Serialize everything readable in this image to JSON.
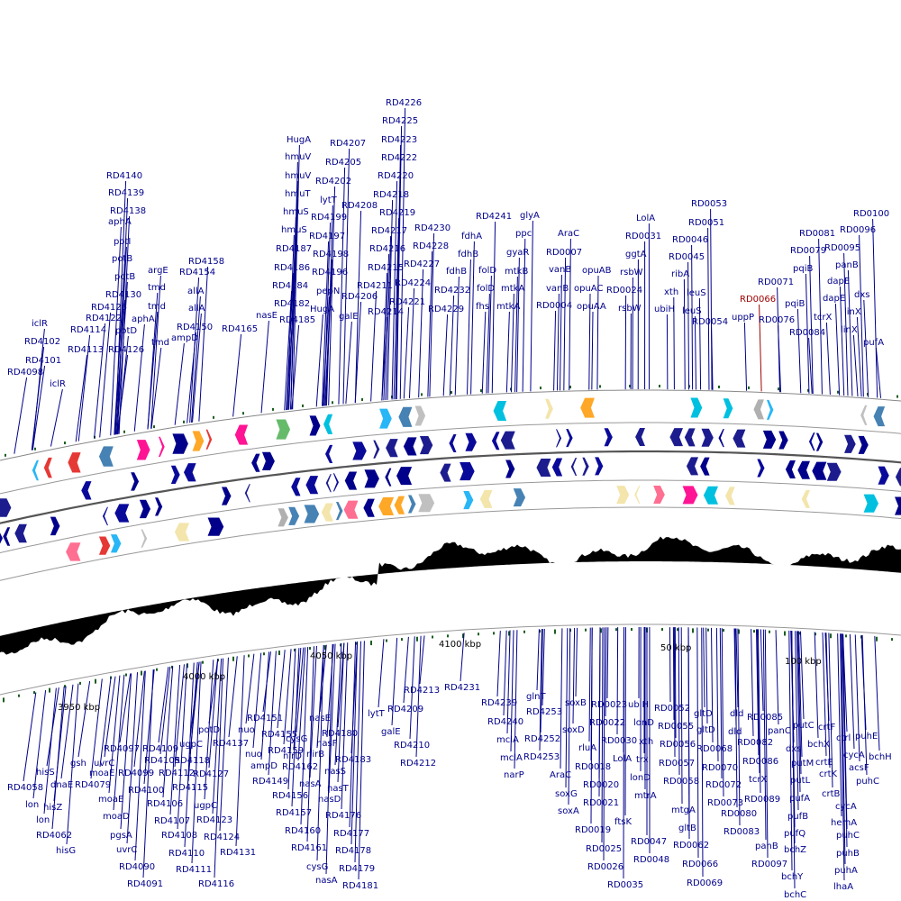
{
  "top_labels": [
    "RD4098",
    "RD4101",
    "iclR",
    "RD4102",
    "iclR",
    "RD4113",
    "RD4114",
    "RD4122",
    "RD4125",
    "RD4130",
    "potD",
    "RD4126",
    "aphA",
    "tmd",
    "tmd",
    "argE",
    "tmd",
    "potI",
    "potB",
    "potB",
    "aphA",
    "RD4138",
    "RD4139",
    "RD4140",
    "RD4154",
    "RD4158",
    "allA",
    "allA",
    "RD4150",
    "ampD",
    "RD4165",
    "nasE",
    "HugA",
    "hmuV",
    "hmuV",
    "hmuT",
    "hmuS",
    "hmuS",
    "RD4187",
    "RD4186",
    "RD4184",
    "RD4182",
    "RD4185",
    "RD4207",
    "RD4205",
    "RD4202",
    "lytT",
    "RD4199",
    "RD4197",
    "RD4198",
    "RD4196",
    "pepN",
    "HugA",
    "galE",
    "RD4208",
    "RD4206",
    "RD4211",
    "RD4214",
    "RD4226",
    "RD4225",
    "RD4223",
    "RD4222",
    "RD4220",
    "RD4218",
    "RD4219",
    "RD4217",
    "RD4216",
    "RD4215",
    "RD4224",
    "RD4221",
    "RD4227",
    "RD4228",
    "RD4230",
    "RD4232",
    "RD4229",
    "fdhB",
    "fdhB",
    "fdhA",
    "RD4241",
    "folD",
    "folD",
    "fhs",
    "glyA",
    "ppc",
    "gyaR",
    "mtkB",
    "mtkA",
    "mtkA",
    "AraC",
    "RD0007",
    "vanB",
    "vanB",
    "RD0004",
    "opuAB",
    "opuAC",
    "opuAA",
    "LolA",
    "RD0031",
    "ggtA",
    "rsbW",
    "RD0024",
    "rsbW",
    "RD0053",
    "RD0051",
    "RD0046",
    "RD0045",
    "ribA",
    "leuS",
    "xth",
    "ubiH",
    "leuS",
    "RD0054",
    "uppP",
    "RD0066",
    "RD0071",
    "RD0076",
    "RD0081",
    "RD0079",
    "pqiB",
    "pqiB",
    "RD0084",
    "tcrX",
    "dapE",
    "dapE",
    "panB",
    "RD0095",
    "RD0096",
    "RD0100",
    "dxs",
    "linX",
    "linX",
    "pufA"
  ],
  "bottom_labels": [
    "RD4231",
    "RD4213",
    "lytT",
    "RD4209",
    "galE",
    "RD4210",
    "RD4212",
    "RD4239",
    "RD4240",
    "mclA",
    "mclA",
    "narP",
    "glnT",
    "RD4253",
    "RD4252",
    "RD4253",
    "AraC",
    "soxG",
    "soxA",
    "soxB",
    "soxD",
    "rluA",
    "RD0018",
    "RD0020",
    "RD0021",
    "RD0019",
    "RD0025",
    "RD0026",
    "RD0035",
    "RD0023",
    "RD0022",
    "RD0030",
    "LolA",
    "ftsK",
    "ubiH",
    "lonD",
    "xth",
    "trx",
    "lonD",
    "mtrA",
    "RD0047",
    "RD0048",
    "RD0052",
    "RD0055",
    "RD0056",
    "RD0057",
    "RD0058",
    "mtgA",
    "gltB",
    "RD0062",
    "RD0066",
    "RD0069",
    "gltD",
    "gltD",
    "RD0068",
    "RD0070",
    "RD0072",
    "RD0073",
    "RD0080",
    "RD0083",
    "dld",
    "dld",
    "RD0085",
    "RD0082",
    "RD0086",
    "RD0089",
    "panC",
    "tcrX",
    "panB",
    "RD0097",
    "putC",
    "dxs",
    "putM",
    "putL",
    "pufA",
    "pufB",
    "pufQ",
    "bchZ",
    "bchY",
    "bchC",
    "bchX",
    "crtF",
    "crtE",
    "crtK",
    "crtB",
    "cycA",
    "hemA",
    "puhC",
    "puhB",
    "puhA",
    "lhaA",
    "ctrl",
    "puhE",
    "acsF",
    "puhC",
    "cycA",
    "bchH",
    "RD4058",
    "lon",
    "lon",
    "hisZ",
    "hisS",
    "dnaE",
    "RD4062",
    "hisG",
    "gsh",
    "RD4079",
    "uvrC",
    "moaE",
    "moaE",
    "moaD",
    "pgsA",
    "uvrC",
    "RD4090",
    "RD4091",
    "RD4097",
    "RD4099",
    "RD4100",
    "RD4109",
    "RD4105",
    "RD4106",
    "RD4107",
    "RD4108",
    "RD4110",
    "RD4111",
    "RD4116",
    "RD4112",
    "RD4115",
    "ugpC",
    "ugpC",
    "RD4118",
    "RD4127",
    "RD4123",
    "RD4124",
    "RD4131",
    "potD",
    "RD4137",
    "RD4151",
    "nuo",
    "nuo",
    "ampD",
    "RD4149",
    "RD4155",
    "RD4159",
    "RD4156",
    "RD4157",
    "RD4160",
    "RD4161",
    "cysG",
    "nasA",
    "RD4162",
    "nasA",
    "cysG",
    "nirD",
    "nirB",
    "nasE",
    "nasF",
    "nasS",
    "nasD",
    "RD4180",
    "nasT",
    "RD4176",
    "RD4177",
    "RD4178",
    "RD4179",
    "RD4181",
    "RD4183"
  ],
  "scale_labels": [
    "4050 kbp",
    "4100 kbp",
    "50 kbp",
    "100 kbp",
    "4000 kbp",
    "3950 kbp"
  ]
}
